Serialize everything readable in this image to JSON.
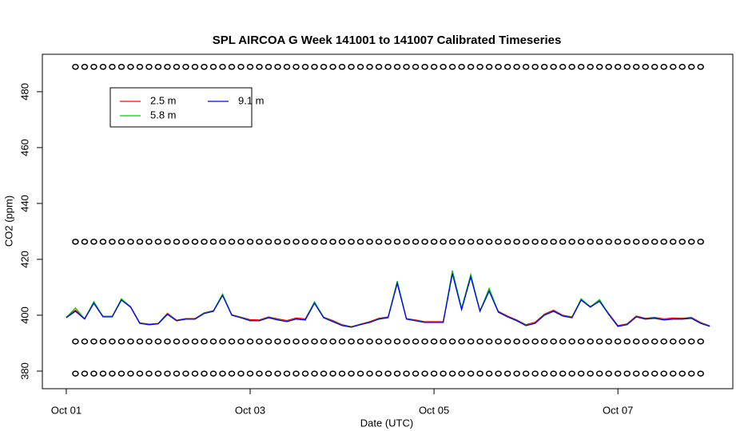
{
  "chart_data": {
    "type": "line",
    "title": "SPL AIRCOA G  Week 141001 to 141007  Calibrated Timeseries",
    "x_label": "Date (UTC)",
    "y_label": "CO2 (ppm)",
    "xlim": [
      -0.26,
      7.25
    ],
    "xticks": [
      {
        "value": 0,
        "label": "Oct 01"
      },
      {
        "value": 2,
        "label": "Oct 03"
      },
      {
        "value": 4,
        "label": "Oct 05"
      },
      {
        "value": 6,
        "label": "Oct 07"
      }
    ],
    "ylim": [
      373.7,
      493.4
    ],
    "yticks": [
      380,
      400,
      420,
      440,
      460,
      480
    ],
    "legend_position": "topleft",
    "x": [
      0,
      0.1,
      0.2,
      0.3,
      0.4,
      0.5,
      0.6,
      0.7,
      0.8,
      0.9,
      1,
      1.1,
      1.2,
      1.3,
      1.4,
      1.5,
      1.6,
      1.7,
      1.8,
      1.9,
      2,
      2.1,
      2.2,
      2.3,
      2.4,
      2.5,
      2.6,
      2.7,
      2.8,
      2.9,
      3,
      3.1,
      3.2,
      3.3,
      3.4,
      3.5,
      3.6,
      3.7,
      3.8,
      3.9,
      4,
      4.1,
      4.2,
      4.3,
      4.4,
      4.5,
      4.6,
      4.7,
      4.8,
      4.9,
      5,
      5.1,
      5.2,
      5.3,
      5.4,
      5.5,
      5.6,
      5.7,
      5.8,
      5.9,
      6,
      6.1,
      6.2,
      6.3,
      6.4,
      6.5,
      6.6,
      6.7,
      6.8,
      6.9,
      7
    ],
    "series": [
      {
        "name": "2.5 m",
        "color": "#ff0000",
        "values": [
          399.3,
          401.8,
          398.8,
          404.5,
          399.6,
          399.6,
          405.6,
          403.1,
          397.3,
          396.8,
          397.1,
          400.7,
          398.2,
          398.8,
          398.8,
          400.9,
          401.6,
          407.3,
          400.2,
          399.3,
          398.4,
          398.3,
          399.4,
          398.7,
          398.1,
          399.0,
          398.7,
          404.6,
          399.3,
          398.1,
          396.6,
          395.9,
          396.8,
          397.7,
          398.9,
          399.4,
          411.6,
          398.8,
          398.3,
          397.7,
          397.7,
          397.7,
          415.1,
          402.3,
          413.9,
          401.7,
          408.8,
          401.4,
          399.7,
          398.3,
          396.6,
          397.5,
          400.4,
          401.8,
          400.0,
          399.4,
          405.6,
          403.1,
          405.2,
          400.6,
          396.3,
          396.9,
          399.7,
          398.9,
          399.2,
          398.7,
          399.0,
          398.9,
          399.2,
          397.4,
          396.2
        ]
      },
      {
        "name": "5.8 m",
        "color": "#00cd00",
        "values": [
          399.2,
          402.6,
          398.7,
          404.9,
          399.5,
          399.5,
          405.9,
          403.0,
          397.2,
          396.7,
          397.0,
          400.5,
          398.1,
          398.7,
          398.7,
          400.8,
          401.5,
          407.6,
          400.1,
          399.2,
          398.1,
          398.1,
          399.2,
          398.4,
          397.8,
          398.7,
          398.4,
          404.8,
          399.2,
          397.8,
          396.4,
          395.8,
          396.7,
          397.5,
          398.7,
          399.2,
          412.2,
          398.7,
          398.1,
          397.5,
          397.5,
          397.5,
          416.0,
          402.5,
          414.6,
          401.5,
          409.6,
          401.2,
          399.5,
          398.1,
          396.4,
          397.2,
          400.1,
          401.5,
          399.8,
          399.2,
          405.9,
          403.0,
          405.6,
          400.4,
          396.1,
          396.7,
          399.5,
          398.7,
          399.0,
          398.4,
          398.7,
          398.7,
          399.0,
          397.2,
          396.1
        ]
      },
      {
        "name": "9.1 m",
        "color": "#0000ff",
        "values": [
          399.1,
          401.4,
          398.6,
          404.3,
          399.4,
          399.4,
          405.4,
          402.9,
          397.1,
          396.6,
          396.9,
          400.3,
          398.0,
          398.6,
          398.6,
          400.6,
          401.4,
          407.1,
          400.0,
          399.1,
          398.0,
          398.0,
          399.1,
          398.3,
          397.7,
          398.6,
          398.3,
          404.3,
          399.1,
          397.7,
          396.3,
          395.7,
          396.6,
          397.4,
          398.6,
          399.1,
          411.4,
          398.6,
          398.0,
          397.4,
          397.4,
          397.4,
          414.9,
          402.0,
          413.7,
          401.4,
          408.6,
          401.1,
          399.4,
          398.0,
          396.3,
          397.1,
          400.0,
          401.4,
          399.7,
          399.1,
          405.4,
          402.9,
          405.0,
          400.3,
          396.0,
          396.6,
          399.4,
          398.6,
          398.9,
          398.3,
          398.6,
          398.6,
          398.9,
          397.1,
          396.0
        ]
      }
    ],
    "standards": {
      "x": [
        0.1,
        0.2,
        0.3,
        0.4,
        0.5,
        0.6,
        0.7,
        0.8,
        0.9,
        1,
        1.1,
        1.2,
        1.3,
        1.4,
        1.5,
        1.6,
        1.7,
        1.8,
        1.9,
        2,
        2.1,
        2.2,
        2.3,
        2.4,
        2.5,
        2.6,
        2.7,
        2.8,
        2.9,
        3,
        3.1,
        3.2,
        3.3,
        3.4,
        3.5,
        3.6,
        3.7,
        3.8,
        3.9,
        4,
        4.1,
        4.2,
        4.3,
        4.4,
        4.5,
        4.6,
        4.7,
        4.8,
        4.9,
        5,
        5.1,
        5.2,
        5.3,
        5.4,
        5.5,
        5.6,
        5.7,
        5.8,
        5.9,
        6,
        6.1,
        6.2,
        6.3,
        6.4,
        6.5,
        6.6,
        6.7,
        6.8,
        6.9
      ],
      "levels": [
        488.9,
        426.3,
        390.6,
        379.1
      ]
    }
  }
}
